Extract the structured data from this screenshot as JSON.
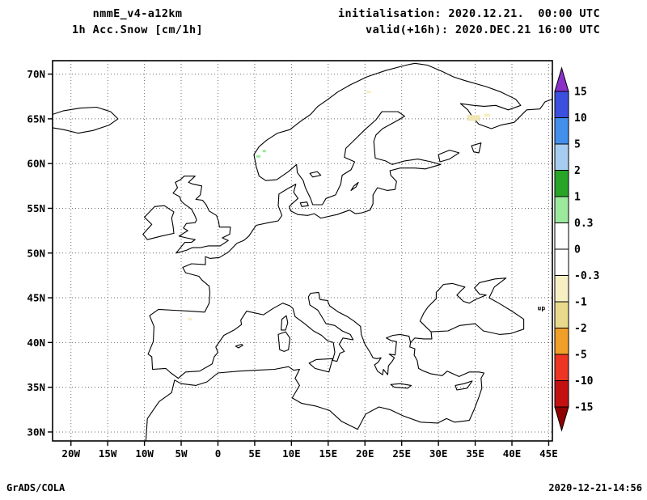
{
  "header": {
    "model": "nmmE_v4-a12km",
    "field": "1h Acc.Snow [cm/1h]",
    "init": "initialisation: 2020.12.21.  00:00 UTC",
    "valid": "valid(+16h): 2020.DEC.21 16:00 UTC"
  },
  "footer": {
    "left": "GrADS/COLA",
    "right": "2020-12-21-14:56"
  },
  "chart_data": {
    "type": "map",
    "title": "nmmE_v4-a12km 1h Acc.Snow [cm/1h]",
    "projection": "latlon",
    "region": "Europe",
    "lon_range": [
      -22.5,
      45.5
    ],
    "lat_range": [
      29.0,
      71.5
    ],
    "lon_tick_labels": [
      "20W",
      "15W",
      "10W",
      "5W",
      "0",
      "5E",
      "10E",
      "15E",
      "20E",
      "25E",
      "30E",
      "35E",
      "40E",
      "45E"
    ],
    "lon_tick_values": [
      -20,
      -15,
      -10,
      -5,
      0,
      5,
      10,
      15,
      20,
      25,
      30,
      35,
      40,
      45
    ],
    "lat_tick_labels": [
      "30N",
      "35N",
      "40N",
      "45N",
      "50N",
      "55N",
      "60N",
      "65N",
      "70N"
    ],
    "lat_tick_values": [
      30,
      35,
      40,
      45,
      50,
      55,
      60,
      65,
      70
    ],
    "grid": true,
    "colorbar": {
      "orientation": "vertical-right",
      "levels": [
        "15",
        "10",
        "5",
        "2",
        "1",
        "0.3",
        "0",
        "-0.3",
        "-1",
        "-2",
        "-5",
        "-10",
        "-15"
      ],
      "colors_top_to_bottom": [
        "#8a30c8",
        "#3c50e0",
        "#4390ec",
        "#a6cdf0",
        "#28a428",
        "#9ce89c",
        "#ffffff",
        "#ffffff",
        "#f6efc4",
        "#e9d98c",
        "#f0a028",
        "#ee3423",
        "#c31111",
        "#8f0000"
      ]
    },
    "snow_specks": [
      {
        "lon": 5.5,
        "lat": 60.8,
        "w": 5,
        "h": 3,
        "color": "#9ce89c"
      },
      {
        "lon": 6.3,
        "lat": 61.4,
        "w": 4,
        "h": 3,
        "color": "#9ce89c"
      },
      {
        "lon": 34.8,
        "lat": 65.1,
        "w": 16,
        "h": 7,
        "color": "#f0e6b4"
      },
      {
        "lon": 36.6,
        "lat": 65.4,
        "w": 8,
        "h": 4,
        "color": "#f6efc4"
      },
      {
        "lon": 20.5,
        "lat": 68.0,
        "w": 6,
        "h": 3,
        "color": "#f6efc4"
      },
      {
        "lon": -3.8,
        "lat": 42.6,
        "w": 5,
        "h": 3,
        "color": "#f6efc4"
      },
      {
        "lon": 44.0,
        "lat": 43.6,
        "text": "up",
        "color": "#2aa02c"
      }
    ]
  }
}
